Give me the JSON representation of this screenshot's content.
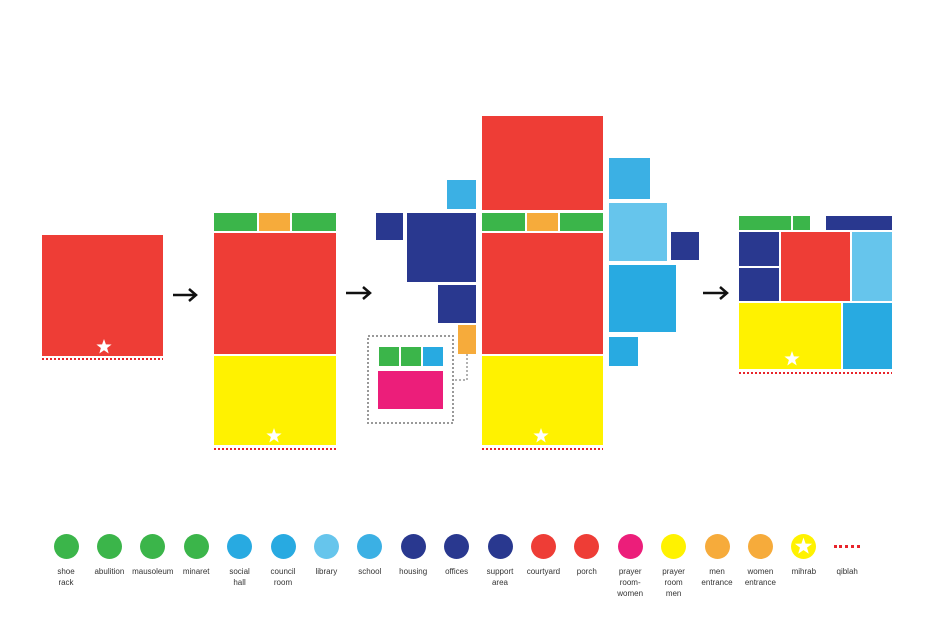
{
  "colors": {
    "green": "#3bb54a",
    "orange": "#f6ab3b",
    "red": "#ee3d36",
    "yellow": "#fff200",
    "navy": "#29388f",
    "blue": "#28aae1",
    "light_blue": "#66c5ec",
    "magenta": "#ec1e7a",
    "qiblah": "#e8242b",
    "arrow": "#111111"
  },
  "legend": [
    {
      "label": "shoe\nrack",
      "color": "#3bb54a"
    },
    {
      "label": "abulition",
      "color": "#3bb54a"
    },
    {
      "label": "mausoleum",
      "color": "#3bb54a"
    },
    {
      "label": "minaret",
      "color": "#3bb54a"
    },
    {
      "label": "social\nhall",
      "color": "#28aae1"
    },
    {
      "label": "council\nroom",
      "color": "#28aae1"
    },
    {
      "label": "library",
      "color": "#66c5ec"
    },
    {
      "label": "school",
      "color": "#3bb0e4"
    },
    {
      "label": "housing",
      "color": "#29388f"
    },
    {
      "label": "offices",
      "color": "#29388f"
    },
    {
      "label": "support\narea",
      "color": "#29388f"
    },
    {
      "label": "courtyard",
      "color": "#ee3d36"
    },
    {
      "label": "porch",
      "color": "#ee3d36"
    },
    {
      "label": "prayer\nroom-\nwomen",
      "color": "#ec1e7a"
    },
    {
      "label": "prayer\nroom\nmen",
      "color": "#fff200"
    },
    {
      "label": "men\nentrance",
      "color": "#f6ab3b"
    },
    {
      "label": "women\nentrance",
      "color": "#f6ab3b"
    },
    {
      "label": "mihrab",
      "color": "#fff200",
      "icon": "star-icon"
    },
    {
      "label": "qiblah",
      "color": "#e8242b",
      "icon": "dotted-line"
    }
  ]
}
